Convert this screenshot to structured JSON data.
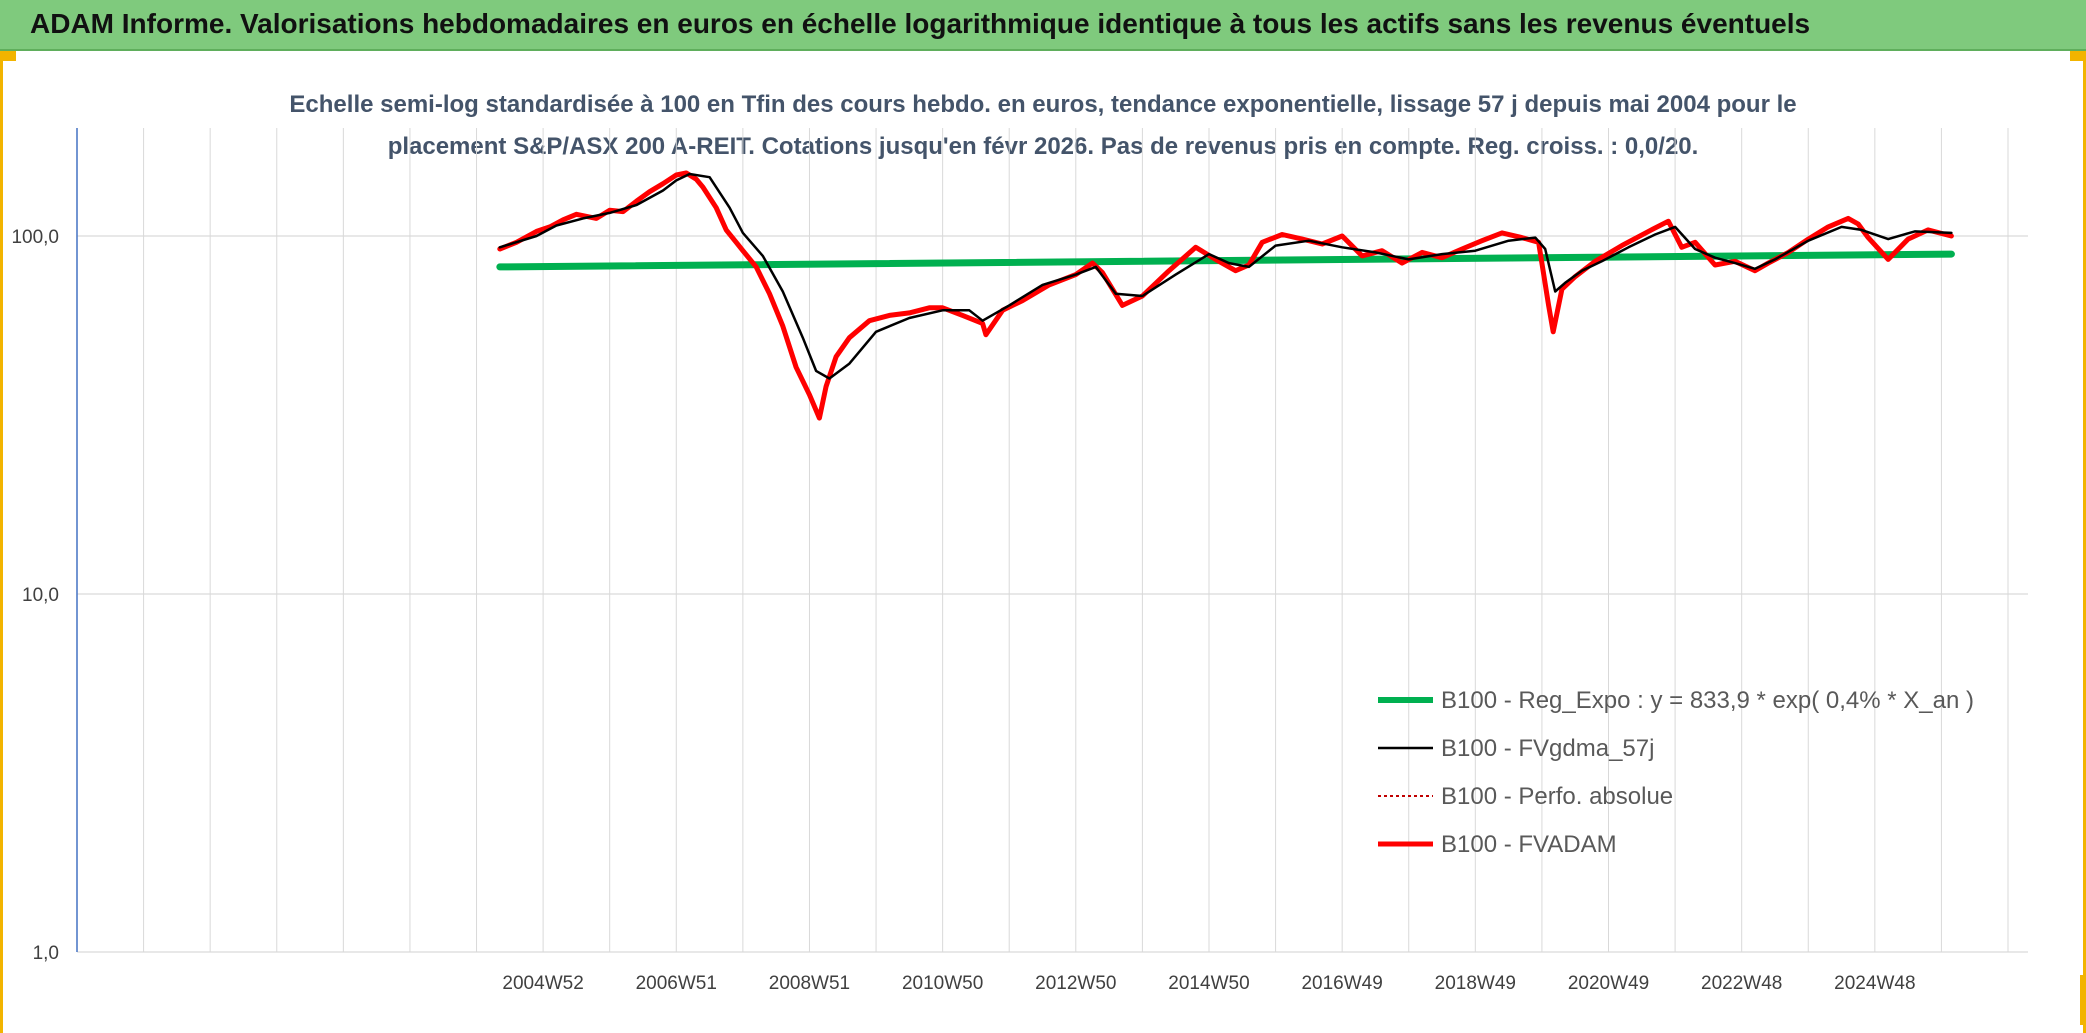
{
  "header": {
    "title": "ADAM Informe. Valorisations hebdomadaires en euros en échelle logarithmique identique à tous les actifs sans les revenus éventuels"
  },
  "colors": {
    "banner": "#7fca7d",
    "frame_accent": "#f2b400",
    "reg_expo": "#00b050",
    "fvgdma": "#000000",
    "perfo": "#c00000",
    "fvadam": "#ff0000",
    "grid": "#d9d9d9",
    "axis": "#4472c4"
  },
  "chart_data": {
    "type": "line",
    "title_lines": [
      "Echelle semi-log standardisée à 100 en Tfin des cours hebdo. en euros, tendance exponentielle, lissage 57 j depuis mai 2004 pour le",
      "placement S&P/ASX 200 A-REIT. Cotations jusqu'en févr 2026. Pas de revenus pris en compte. Reg. croiss. : 0,0/20."
    ],
    "y_scale": "log",
    "ylim": [
      1,
      180
    ],
    "yticks": [
      {
        "value": 1,
        "label": "1,0"
      },
      {
        "value": 10,
        "label": "10,0"
      },
      {
        "value": 100,
        "label": "100,0"
      }
    ],
    "xlim": [
      1998.0,
      2027.3
    ],
    "xticks": [
      {
        "value": 2005.0,
        "label": "2004W52"
      },
      {
        "value": 2007.0,
        "label": "2006W51"
      },
      {
        "value": 2009.0,
        "label": "2008W51"
      },
      {
        "value": 2011.0,
        "label": "2010W50"
      },
      {
        "value": 2013.0,
        "label": "2012W50"
      },
      {
        "value": 2015.0,
        "label": "2014W50"
      },
      {
        "value": 2017.0,
        "label": "2016W49"
      },
      {
        "value": 2019.0,
        "label": "2018W49"
      },
      {
        "value": 2021.0,
        "label": "2020W49"
      },
      {
        "value": 2023.0,
        "label": "2022W48"
      },
      {
        "value": 2025.0,
        "label": "2024W48"
      }
    ],
    "grid": true,
    "legend_position": "bottom-right",
    "series": [
      {
        "name": "B100 - Reg_Expo : y = 833,9 * exp( 0,4% *  X_an )",
        "style": "thick-green",
        "x": [
          2004.35,
          2026.15
        ],
        "y": [
          82.0,
          89.0
        ]
      },
      {
        "name": "B100 - FVgdma_57j",
        "style": "thin-black",
        "x": [
          2004.35,
          2004.9,
          2005.2,
          2005.6,
          2006.0,
          2006.4,
          2006.8,
          2007.0,
          2007.2,
          2007.5,
          2007.8,
          2008.0,
          2008.3,
          2008.6,
          2008.9,
          2009.1,
          2009.3,
          2009.6,
          2010.0,
          2010.5,
          2011.0,
          2011.4,
          2011.6,
          2012.0,
          2012.5,
          2013.0,
          2013.3,
          2013.6,
          2014.0,
          2014.5,
          2015.0,
          2015.3,
          2015.6,
          2016.0,
          2016.5,
          2017.0,
          2017.5,
          2018.0,
          2018.5,
          2019.0,
          2019.5,
          2019.9,
          2020.05,
          2020.2,
          2020.35,
          2020.6,
          2020.9,
          2021.3,
          2021.7,
          2022.0,
          2022.3,
          2022.6,
          2022.9,
          2023.2,
          2023.5,
          2024.0,
          2024.5,
          2024.8,
          2025.2,
          2025.6,
          2026.15
        ],
        "y": [
          93,
          100,
          107,
          112,
          116,
          122,
          134,
          143,
          149,
          146,
          120,
          102,
          88,
          70,
          52,
          42,
          40,
          44,
          54,
          59,
          62,
          62,
          58,
          64,
          73,
          78,
          82,
          69,
          68,
          78,
          89,
          84,
          82,
          94,
          97,
          93,
          90,
          86,
          89,
          91,
          97,
          99,
          92,
          70,
          74,
          80,
          85,
          93,
          101,
          106,
          92,
          87,
          84,
          81,
          86,
          97,
          106,
          104,
          98,
          103,
          102
        ]
      },
      {
        "name": "B100 - Perfo. absolue",
        "style": "dotted-darkred",
        "x": [],
        "y": []
      },
      {
        "name": "B100 - FVADAM",
        "style": "thick-red",
        "x": [
          2004.35,
          2004.6,
          2004.9,
          2005.1,
          2005.3,
          2005.5,
          2005.8,
          2006.0,
          2006.2,
          2006.4,
          2006.6,
          2006.8,
          2007.0,
          2007.15,
          2007.3,
          2007.4,
          2007.6,
          2007.75,
          2007.9,
          2008.0,
          2008.2,
          2008.4,
          2008.6,
          2008.8,
          2009.0,
          2009.15,
          2009.25,
          2009.4,
          2009.6,
          2009.9,
          2010.2,
          2010.5,
          2010.8,
          2011.0,
          2011.3,
          2011.6,
          2011.65,
          2011.9,
          2012.2,
          2012.6,
          2013.0,
          2013.25,
          2013.4,
          2013.7,
          2014.0,
          2014.4,
          2014.8,
          2015.1,
          2015.4,
          2015.6,
          2015.8,
          2016.1,
          2016.4,
          2016.7,
          2017.0,
          2017.3,
          2017.6,
          2017.9,
          2018.2,
          2018.5,
          2018.8,
          2019.1,
          2019.4,
          2019.7,
          2019.95,
          2020.1,
          2020.17,
          2020.3,
          2020.5,
          2020.8,
          2021.2,
          2021.6,
          2021.9,
          2022.1,
          2022.3,
          2022.6,
          2022.9,
          2023.2,
          2023.4,
          2023.7,
          2024.0,
          2024.3,
          2024.6,
          2024.75,
          2024.9,
          2025.2,
          2025.5,
          2025.8,
          2026.15
        ],
        "y": [
          92,
          96,
          103,
          106,
          111,
          115,
          112,
          118,
          117,
          125,
          133,
          140,
          148,
          150,
          144,
          137,
          120,
          104,
          96,
          91,
          82,
          69,
          56,
          43,
          36,
          31,
          38,
          46,
          52,
          58,
          60,
          61,
          63,
          63,
          60,
          57,
          53,
          62,
          66,
          73,
          78,
          84,
          79,
          64,
          68,
          80,
          93,
          86,
          80,
          83,
          96,
          101,
          98,
          95,
          100,
          88,
          91,
          84,
          90,
          87,
          92,
          97,
          102,
          99,
          96,
          64,
          54,
          71,
          77,
          85,
          94,
          103,
          110,
          93,
          96,
          83,
          85,
          80,
          84,
          90,
          98,
          106,
          112,
          108,
          99,
          86,
          98,
          104,
          100
        ]
      }
    ]
  }
}
